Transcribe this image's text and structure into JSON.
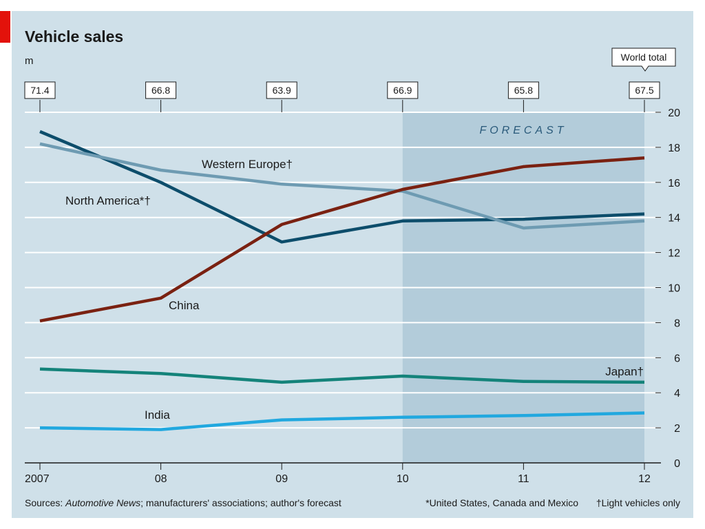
{
  "chart_data": {
    "type": "line",
    "title": "Vehicle sales",
    "unit_label": "m",
    "categories": [
      "2007",
      "08",
      "09",
      "10",
      "11",
      "12"
    ],
    "ylim": [
      0,
      20
    ],
    "yticks": [
      0,
      2,
      4,
      6,
      8,
      10,
      12,
      14,
      16,
      18,
      20
    ],
    "world_total_label": "World total",
    "world_totals": [
      "71.4",
      "66.8",
      "63.9",
      "66.9",
      "65.8",
      "67.5"
    ],
    "forecast_label": "FORECAST",
    "forecast_start": 3,
    "series": [
      {
        "name": "North America",
        "label": "North America*†",
        "color": "#0d4d6b",
        "values": [
          18.9,
          16.0,
          12.6,
          13.8,
          13.9,
          14.2
        ]
      },
      {
        "name": "Western Europe",
        "label": "Western Europe†",
        "color": "#6e9bb2",
        "values": [
          18.2,
          16.7,
          15.9,
          15.5,
          13.4,
          13.8
        ]
      },
      {
        "name": "China",
        "label": "China",
        "color": "#7a2111",
        "values": [
          8.1,
          9.4,
          13.6,
          15.6,
          16.9,
          17.4
        ]
      },
      {
        "name": "Japan",
        "label": "Japan†",
        "color": "#14837a",
        "values": [
          5.35,
          5.1,
          4.6,
          4.95,
          4.65,
          4.6
        ]
      },
      {
        "name": "India",
        "label": "India",
        "color": "#21a8df",
        "values": [
          2.0,
          1.9,
          2.45,
          2.6,
          2.7,
          2.85
        ]
      }
    ]
  },
  "footer": {
    "source_prefix": "Sources: ",
    "source_italic": "Automotive News",
    "source_rest": "; manufacturers' associations; author's forecast",
    "note1": "*United States, Canada and Mexico",
    "note2": "†Light vehicles only"
  }
}
